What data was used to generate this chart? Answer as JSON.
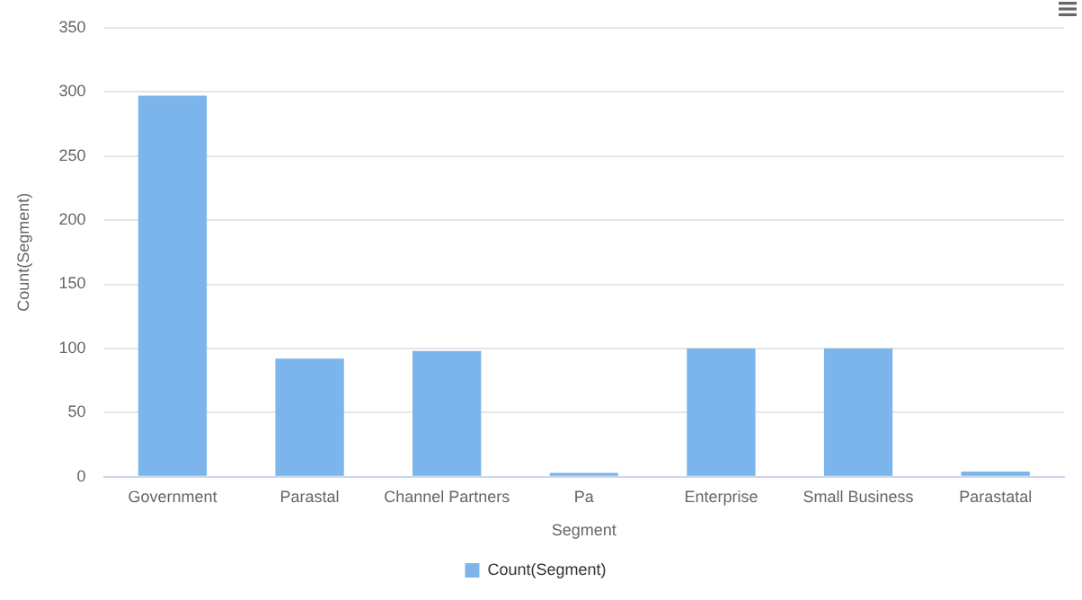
{
  "chart_data": {
    "type": "bar",
    "xlabel": "Segment",
    "ylabel": "Count(Segment)",
    "categories": [
      "Government",
      "Parastal",
      "Channel Partners",
      "Pa",
      "Enterprise",
      "Small Business",
      "Parastatal"
    ],
    "series": [
      {
        "name": "Count(Segment)",
        "color": "#7cb5ec",
        "values": [
          297,
          92,
          98,
          3,
          100,
          100,
          4
        ]
      }
    ],
    "ylim": [
      0,
      350
    ],
    "yticks": [
      0,
      50,
      100,
      150,
      200,
      250,
      300,
      350
    ],
    "grid": "y",
    "legend": "bottom"
  }
}
